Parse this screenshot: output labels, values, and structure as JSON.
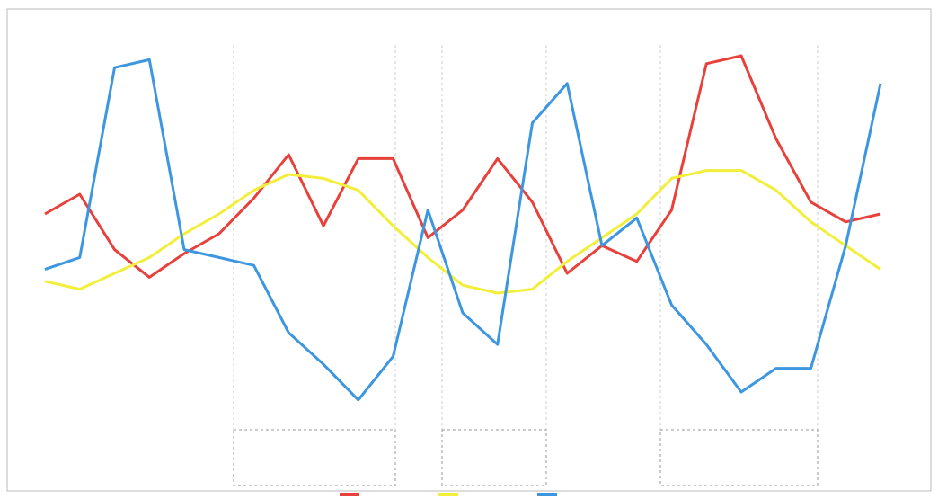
{
  "chart_data": {
    "type": "line",
    "categories": [
      null,
      null,
      null,
      null,
      null,
      null,
      null,
      null,
      null,
      null,
      null,
      null,
      null,
      null,
      null,
      null,
      null,
      null,
      null,
      null,
      null,
      null,
      null,
      null,
      null
    ],
    "ylim": [
      0,
      100
    ],
    "series": [
      {
        "color": "#e8403a",
        "values": [
          55,
          60,
          46,
          39,
          45,
          50,
          59,
          70,
          52,
          69,
          69,
          49,
          56,
          69,
          58,
          40,
          47,
          43,
          56,
          93,
          95,
          74,
          58,
          53,
          55
        ]
      },
      {
        "color": "#f2ee3a",
        "values": [
          38,
          36,
          40,
          44,
          50,
          55,
          61,
          65,
          64,
          61,
          52,
          44,
          37,
          35,
          36,
          43,
          49,
          55,
          64,
          66,
          66,
          61,
          53,
          47,
          41
        ]
      },
      {
        "color": "#3d97e0",
        "values": [
          41,
          44,
          92,
          94,
          46,
          44,
          42,
          25,
          17,
          8,
          19,
          56,
          30,
          22,
          78,
          88,
          47,
          54,
          32,
          22,
          10,
          16,
          16,
          47,
          88
        ]
      }
    ]
  }
}
